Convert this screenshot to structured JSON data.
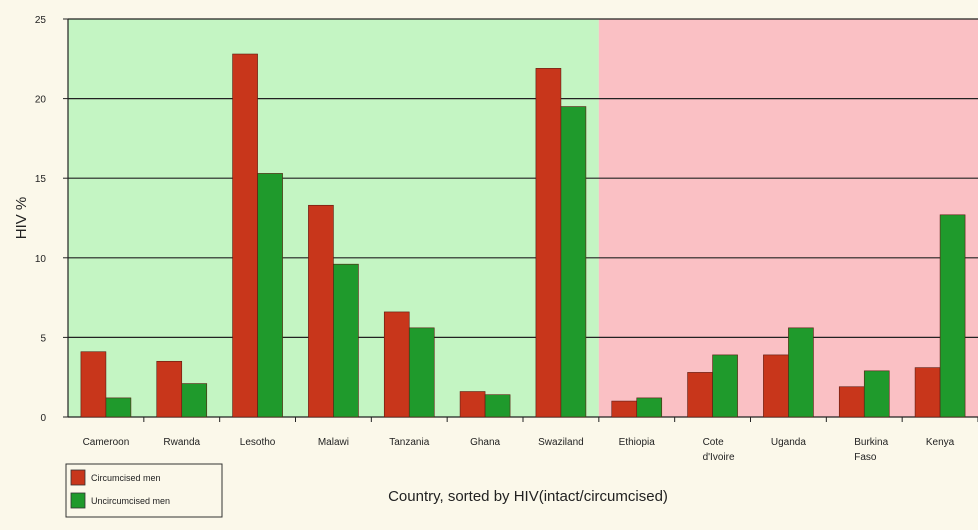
{
  "chart_data": {
    "type": "bar",
    "title": "",
    "xlabel": "Country, sorted by HIV(intact/circumcised)",
    "ylabel": "HIV %",
    "ylim": [
      0,
      25
    ],
    "yticks": [
      0,
      5,
      10,
      15,
      20,
      25
    ],
    "grid": true,
    "legend_position": "bottom-left",
    "categories": [
      "Cameroon",
      "Rwanda",
      "Lesotho",
      "Malawi",
      "Tanzania",
      "Ghana",
      "Swaziland",
      "Ethiopia",
      "Cote d'Ivoire",
      "Uganda",
      "Burkina Faso",
      "Kenya"
    ],
    "category_lines": [
      [
        "Cameroon"
      ],
      [
        "Rwanda"
      ],
      [
        "Lesotho"
      ],
      [
        "Malawi"
      ],
      [
        "Tanzania"
      ],
      [
        "Ghana"
      ],
      [
        "Swaziland"
      ],
      [
        "Ethiopia"
      ],
      [
        "Cote",
        "d'Ivoire"
      ],
      [
        "Uganda"
      ],
      [
        "Burkina",
        "Faso"
      ],
      [
        "Kenya"
      ]
    ],
    "series": [
      {
        "name": "Circumcised men",
        "color": "#c8361b",
        "values": [
          4.1,
          3.5,
          22.8,
          13.3,
          6.6,
          1.6,
          21.9,
          1.0,
          2.8,
          3.9,
          1.9,
          3.1
        ]
      },
      {
        "name": "Uncircumcised men",
        "color": "#1f9a2c",
        "values": [
          1.2,
          2.1,
          15.3,
          9.6,
          5.6,
          1.4,
          19.5,
          1.2,
          3.9,
          5.6,
          2.9,
          12.7
        ]
      }
    ],
    "background_regions": [
      {
        "from_category": "Cameroon",
        "to_category": "Swaziland",
        "color": "#c4f5c3"
      },
      {
        "from_category": "Ethiopia",
        "to_category": "Kenya",
        "color": "#fac0c4"
      }
    ]
  }
}
